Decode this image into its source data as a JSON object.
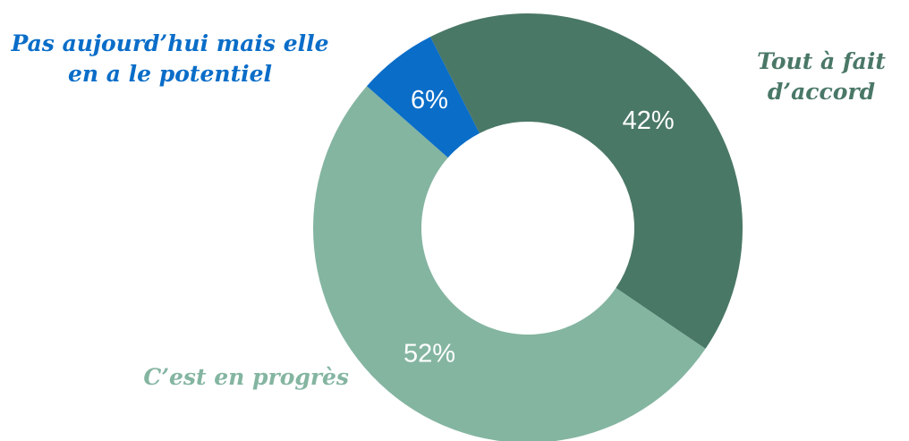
{
  "chart_data": {
    "type": "donut",
    "categories": [
      "Tout à fait d’accord",
      "C’est en progrès",
      "Pas aujourd’hui mais elle en a le potentiel"
    ],
    "values": [
      42,
      52,
      6
    ],
    "value_labels": [
      "42%",
      "52%",
      "6%"
    ],
    "colors": [
      "#4a7866",
      "#84b5a1",
      "#0a6dc8"
    ]
  }
}
